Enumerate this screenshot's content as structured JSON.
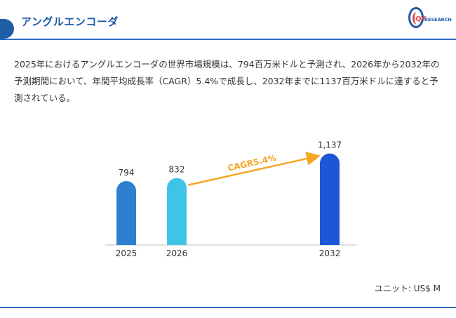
{
  "header": {
    "title": "アングルエンコーダ",
    "logo_text_qy": "QY",
    "logo_text_research": "RESEARCH"
  },
  "description": "2025年におけるアングルエンコーダの世界市場規模は、794百万米ドルと予測され、2026年から2032年の予測期間において、年間平均成長率（CAGR）5.4%で成長し、2032年までに1137百万米ドルに達すると予測されている。",
  "unit_label": "ユニット: US$ M",
  "colors": {
    "brand_blue": "#1e5aa6",
    "bar_2025": "#2f7fd1",
    "bar_2026": "#3fc4e8",
    "bar_2032": "#1b57d6",
    "cagr_arrow": "#f5a623"
  },
  "chart_data": {
    "type": "bar",
    "categories": [
      "2025",
      "2026",
      "2032"
    ],
    "values": [
      794,
      832,
      1137
    ],
    "value_labels": [
      "794",
      "832",
      "1,137"
    ],
    "annotation": "CAGR5.4%",
    "ylim": [
      0,
      1300
    ],
    "grid": false,
    "legend": "none"
  }
}
